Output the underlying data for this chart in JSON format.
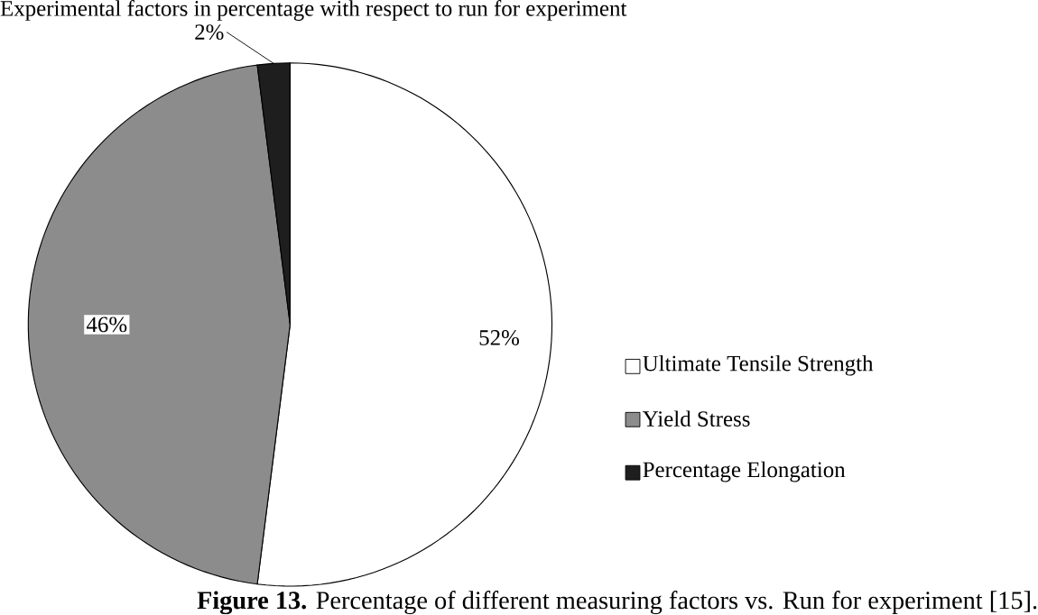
{
  "chart_data": {
    "type": "pie",
    "title": "Experimental factors in percentage with respect to run for experiment",
    "categories": [
      "Ultimate Tensile Strength",
      "Yield Stress",
      "Percentage Elongation"
    ],
    "values": [
      52,
      46,
      2
    ],
    "colors": [
      "#ffffff",
      "#8c8c8c",
      "#1e1e1e"
    ],
    "value_labels": [
      "52%",
      "46%",
      "2%"
    ],
    "legend": "right",
    "annotations": [
      "**Figure 13.** Percentage of different measuring factors vs. Run for experiment [15]."
    ]
  }
}
